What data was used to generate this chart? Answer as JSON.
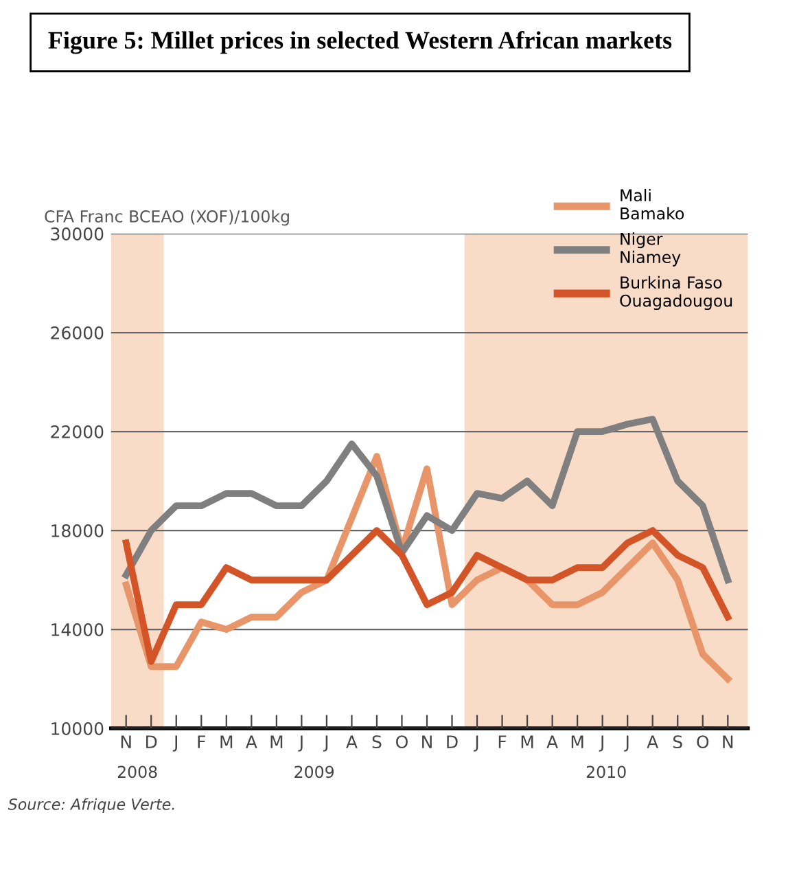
{
  "chart_data": {
    "type": "line",
    "title": "Figure 5: Millet prices in selected Western African markets",
    "ylabel": "CFA Franc BCEAO (XOF)/100kg",
    "categories": [
      "N",
      "D",
      "J",
      "F",
      "M",
      "A",
      "M",
      "J",
      "J",
      "A",
      "S",
      "O",
      "N",
      "D",
      "J",
      "F",
      "M",
      "A",
      "M",
      "J",
      "J",
      "A",
      "S",
      "O",
      "N"
    ],
    "series": [
      {
        "name": "Mali\nBamako",
        "color": "#e8956a",
        "values": [
          15800,
          12500,
          12500,
          14300,
          14000,
          14500,
          14500,
          15500,
          16000,
          18500,
          21000,
          17200,
          20500,
          15000,
          16000,
          16500,
          16000,
          15000,
          15000,
          15500,
          16500,
          17500,
          16000,
          13000,
          12000
        ]
      },
      {
        "name": "Niger\nNiamey",
        "color": "#7f7f7f",
        "values": [
          16200,
          18000,
          19000,
          19000,
          19500,
          19500,
          19000,
          19000,
          20000,
          21500,
          20200,
          17100,
          18600,
          18000,
          19500,
          19300,
          20000,
          19000,
          22000,
          22000,
          22300,
          22500,
          20000,
          19000,
          16000
        ]
      },
      {
        "name": "Burkina Faso\nOuagadougou",
        "color": "#d35427",
        "values": [
          17500,
          12700,
          15000,
          15000,
          16500,
          16000,
          16000,
          16000,
          16000,
          17000,
          18000,
          17000,
          15000,
          15500,
          17000,
          16500,
          16000,
          16000,
          16500,
          16500,
          17500,
          18000,
          17000,
          16500,
          14500
        ]
      }
    ],
    "ylim": [
      10000,
      30000
    ],
    "yticks": [
      10000,
      14000,
      18000,
      22000,
      26000,
      30000
    ],
    "annotations": [
      "2008",
      "2009",
      "2010",
      "Source: Afrique Verte."
    ],
    "grid": "y",
    "legend": "top right",
    "line_style": "solid",
    "marker": "none"
  }
}
